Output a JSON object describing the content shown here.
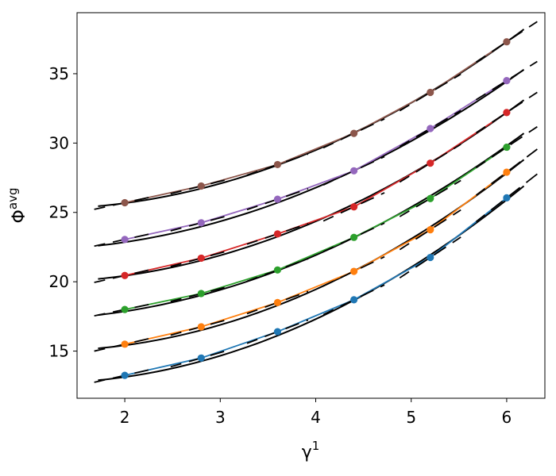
{
  "chart_data": {
    "type": "line",
    "xlabel": {
      "base": "γ",
      "sup": "1"
    },
    "ylabel": {
      "base": "Φ",
      "sup": "avg"
    },
    "xlim": [
      1.5,
      6.4
    ],
    "ylim": [
      11.6,
      39.4
    ],
    "xticks": [
      2,
      3,
      4,
      5,
      6
    ],
    "yticks": [
      15,
      20,
      25,
      30,
      35
    ],
    "grid": false,
    "legend": "none",
    "x": [
      2.0,
      2.8,
      3.6,
      4.4,
      5.2,
      6.0
    ],
    "series": [
      {
        "color": "#1f77b4",
        "values": [
          13.25,
          14.5,
          16.4,
          18.7,
          21.75,
          26.05
        ]
      },
      {
        "color": "#ff7f0e",
        "values": [
          15.5,
          16.75,
          18.5,
          20.75,
          23.75,
          27.9
        ]
      },
      {
        "color": "#2ca02c",
        "values": [
          18.0,
          19.15,
          20.85,
          23.2,
          26.0,
          29.7
        ]
      },
      {
        "color": "#d62728",
        "values": [
          20.45,
          21.7,
          23.45,
          25.4,
          28.55,
          32.2
        ]
      },
      {
        "color": "#9467bd",
        "values": [
          23.05,
          24.25,
          25.95,
          28.0,
          31.05,
          34.5
        ]
      },
      {
        "color": "#8c564b",
        "values": [
          25.7,
          26.9,
          28.45,
          30.7,
          33.65,
          37.3
        ]
      }
    ],
    "fit_curves": [
      {
        "x_range": [
          1.72,
          6.18
        ],
        "values_at_ends": [
          12.9,
          26.9
        ]
      },
      {
        "x_range": [
          1.72,
          6.18
        ],
        "values_at_ends": [
          15.2,
          28.8
        ]
      },
      {
        "x_range": [
          1.72,
          6.18
        ],
        "values_at_ends": [
          17.6,
          30.7
        ]
      },
      {
        "x_range": [
          1.72,
          6.18
        ],
        "values_at_ends": [
          20.2,
          33.1
        ]
      },
      {
        "x_range": [
          1.72,
          6.18
        ],
        "values_at_ends": [
          22.6,
          35.3
        ]
      },
      {
        "x_range": [
          1.72,
          6.18
        ],
        "values_at_ends": [
          25.45,
          38.2
        ]
      }
    ]
  }
}
